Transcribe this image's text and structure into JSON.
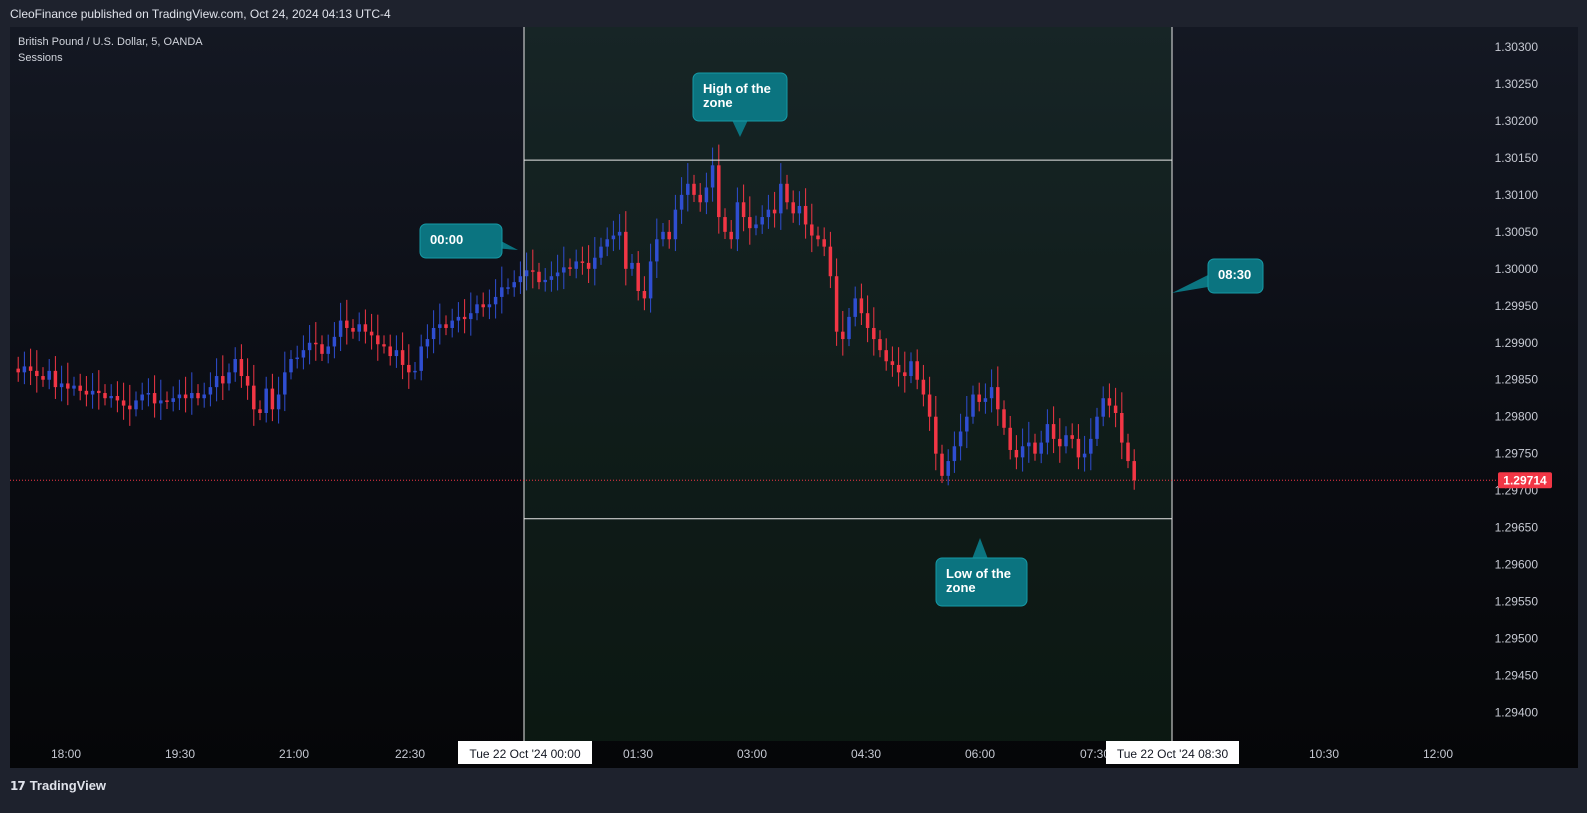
{
  "header": {
    "published": "CleoFinance published on TradingView.com, Oct 24, 2024 04:13 UTC-4"
  },
  "legend": {
    "symbol": "British Pound / U.S. Dollar, 5, OANDA",
    "indicator": "Sessions"
  },
  "footer": {
    "brand": "TradingView",
    "logo_icon": "tradingview-logo-icon"
  },
  "colors": {
    "up": "#2f4ed1",
    "down": "#f23645",
    "price_tag": "#f23645",
    "callout": "#0b7480",
    "zone_line": "#e8e8e8",
    "background": "#0a0c12"
  },
  "annotations": {
    "start": "00:00",
    "end": "08:30",
    "high": "High of the\nzone",
    "low": "Low of the\nzone"
  },
  "chart_data": {
    "type": "candlestick",
    "symbol": "GBPUSD",
    "timeframe": "5",
    "ylim": [
      1.2938,
      1.3035
    ],
    "y_ticks": [
      "1.30300",
      "1.30250",
      "1.30200",
      "1.30150",
      "1.30100",
      "1.30050",
      "1.30000",
      "1.29950",
      "1.29900",
      "1.29850",
      "1.29800",
      "1.29750",
      "1.29700",
      "1.29650",
      "1.29600",
      "1.29550",
      "1.29500",
      "1.29450",
      "1.29400"
    ],
    "x_ticks": [
      "18:00",
      "19:30",
      "21:00",
      "22:30",
      "01:30",
      "03:00",
      "04:30",
      "06:00",
      "07:30",
      "10:30",
      "12:00"
    ],
    "x_range": [
      "Tue 22 Oct '24 00:00",
      "Tue 22 Oct '24 08:30"
    ],
    "last_price": "1.29714",
    "zone": {
      "high": 1.30147,
      "low": 1.29662,
      "start": "00:00",
      "end": "08:30"
    },
    "closes": [
      1.29865,
      1.2986,
      1.29868,
      1.29862,
      1.29855,
      1.2985,
      1.29862,
      1.2984,
      1.29845,
      1.29838,
      1.29842,
      1.29835,
      1.2983,
      1.29835,
      1.29832,
      1.29825,
      1.29828,
      1.29822,
      1.29815,
      1.2981,
      1.29822,
      1.2983,
      1.29832,
      1.29818,
      1.29822,
      1.2982,
      1.29825,
      1.2983,
      1.29825,
      1.29832,
      1.29825,
      1.2983,
      1.2984,
      1.29855,
      1.29845,
      1.2986,
      1.29878,
      1.29855,
      1.29842,
      1.2981,
      1.29805,
      1.29838,
      1.2981,
      1.2983,
      1.2986,
      1.29878,
      1.2988,
      1.2989,
      1.299,
      1.29898,
      1.29885,
      1.29895,
      1.29908,
      1.2993,
      1.2992,
      1.29915,
      1.29925,
      1.29915,
      1.2991,
      1.29898,
      1.29895,
      1.29882,
      1.2989,
      1.2987,
      1.2986,
      1.29862,
      1.29895,
      1.29905,
      1.2992,
      1.29925,
      1.2992,
      1.2993,
      1.29935,
      1.29932,
      1.2994,
      1.29952,
      1.29948,
      1.29952,
      1.29962,
      1.29975,
      1.29975,
      1.29982,
      1.2999,
      1.29998,
      1.29996,
      1.29982,
      1.29985,
      1.2999,
      1.29995,
      1.30002,
      1.3,
      1.3001,
      1.30008,
      1.3,
      1.30015,
      1.3003,
      1.3004,
      1.30045,
      1.3005,
      1.3,
      1.30008,
      1.2997,
      1.2996,
      1.3001,
      1.3004,
      1.3005,
      1.3004,
      1.3008,
      1.301,
      1.30115,
      1.301,
      1.3009,
      1.3011,
      1.3014,
      1.3007,
      1.3005,
      1.3004,
      1.3009,
      1.3007,
      1.30055,
      1.3006,
      1.3007,
      1.3008,
      1.30075,
      1.30115,
      1.3009,
      1.30075,
      1.30085,
      1.3006,
      1.30045,
      1.3004,
      1.3003,
      1.2999,
      1.29915,
      1.29905,
      1.29935,
      1.2996,
      1.2994,
      1.2992,
      1.29905,
      1.2989,
      1.29875,
      1.2987,
      1.2986,
      1.29855,
      1.29875,
      1.2985,
      1.2983,
      1.298,
      1.2975,
      1.2972,
      1.2974,
      1.2976,
      1.2978,
      1.298,
      1.2983,
      1.2982,
      1.29825,
      1.2984,
      1.2981,
      1.29785,
      1.29755,
      1.29745,
      1.2976,
      1.29765,
      1.2975,
      1.29765,
      1.2979,
      1.2977,
      1.2976,
      1.29775,
      1.2977,
      1.29745,
      1.2975,
      1.2977,
      1.298,
      1.29825,
      1.29815,
      1.29805,
      1.29765,
      1.2974,
      1.29714
    ],
    "current_session_index": 72
  }
}
